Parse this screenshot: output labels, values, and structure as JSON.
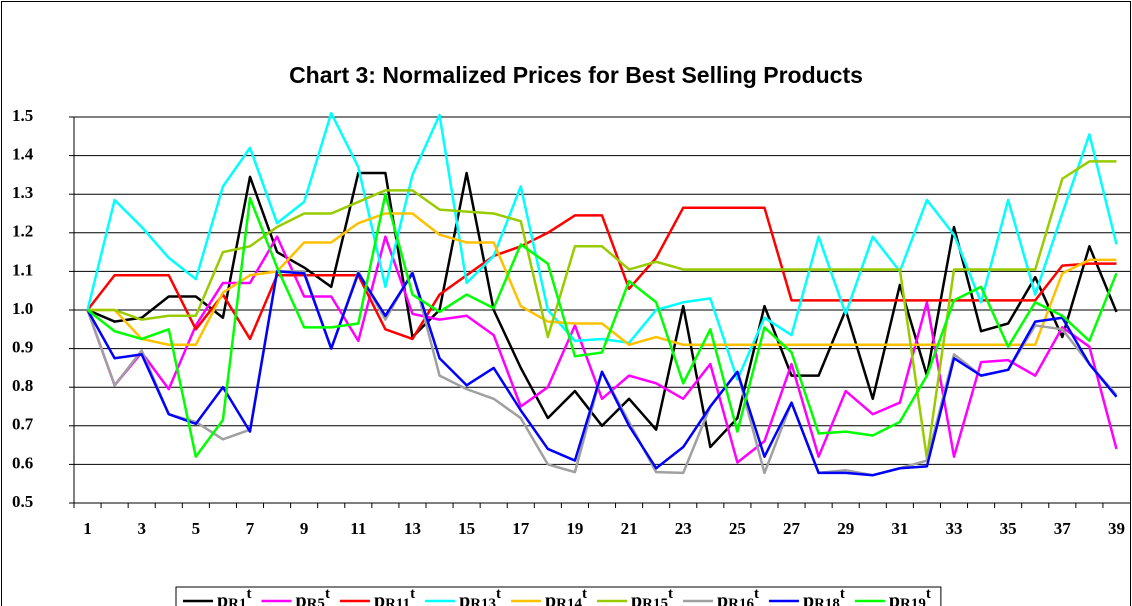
{
  "chart_data": {
    "type": "line",
    "title": "Chart 3: Normalized Prices for Best Selling Products",
    "categories": [
      1,
      null,
      3,
      null,
      5,
      null,
      7,
      null,
      9,
      null,
      11,
      null,
      13,
      null,
      15,
      null,
      17,
      null,
      19,
      null,
      21,
      null,
      23,
      null,
      25,
      null,
      27,
      null,
      29,
      null,
      31,
      null,
      33,
      null,
      35,
      null,
      37,
      null,
      39
    ],
    "ylim": [
      0.5,
      1.5
    ],
    "yticks": [
      0.5,
      0.6,
      0.7,
      0.8,
      0.9,
      {
        "value": 1,
        "label": "1.0"
      },
      1.1,
      1.2,
      1.3,
      1.4,
      1.5
    ],
    "grid": true,
    "legend": "bottom",
    "series": [
      {
        "name": "pR1t",
        "color": "#000000",
        "values": [
          1.0,
          0.97,
          0.98,
          1.035,
          1.035,
          0.98,
          1.345,
          1.15,
          1.11,
          1.06,
          1.355,
          1.355,
          0.93,
          1.0,
          1.355,
          1.0,
          0.85,
          0.72,
          0.79,
          0.7,
          0.77,
          0.69,
          1.01,
          0.645,
          0.72,
          1.01,
          0.83,
          0.83,
          1.0,
          0.77,
          1.065,
          0.83,
          1.215,
          0.945,
          0.965,
          1.085,
          0.93,
          1.165,
          0.995
        ]
      },
      {
        "name": "pR5t",
        "color": "#ff00ff",
        "values": [
          1.0,
          0.805,
          0.89,
          0.795,
          0.96,
          1.07,
          1.07,
          1.19,
          1.035,
          1.035,
          0.92,
          1.19,
          0.99,
          0.975,
          0.985,
          0.935,
          0.75,
          0.8,
          0.96,
          0.77,
          0.83,
          0.81,
          0.77,
          0.86,
          0.605,
          0.66,
          0.86,
          0.62,
          0.79,
          0.73,
          0.76,
          1.02,
          0.62,
          0.865,
          0.87,
          0.83,
          0.955,
          0.905,
          0.64
        ]
      },
      {
        "name": "pR11t",
        "color": "#ff0000",
        "values": [
          1.0,
          1.09,
          1.09,
          1.09,
          0.95,
          1.04,
          0.925,
          1.09,
          1.09,
          1.09,
          1.09,
          0.95,
          0.925,
          1.04,
          1.09,
          1.14,
          1.165,
          1.2,
          1.245,
          1.245,
          1.055,
          1.135,
          1.265,
          1.265,
          1.265,
          1.265,
          1.025,
          1.025,
          1.025,
          1.025,
          1.025,
          1.025,
          1.025,
          1.025,
          1.025,
          1.025,
          1.115,
          1.12,
          1.12
        ]
      },
      {
        "name": "pR13t",
        "color": "#00ffff",
        "values": [
          1.0,
          1.285,
          1.215,
          1.135,
          1.08,
          1.32,
          1.42,
          1.225,
          1.28,
          1.51,
          1.37,
          1.06,
          1.35,
          1.505,
          1.07,
          1.14,
          1.32,
          1.0,
          0.92,
          0.925,
          0.915,
          1.0,
          1.02,
          1.03,
          0.82,
          0.98,
          0.935,
          1.19,
          0.99,
          1.19,
          1.1,
          1.285,
          1.195,
          1.02,
          1.285,
          1.04,
          1.25,
          1.455,
          1.17
        ]
      },
      {
        "name": "pR14t",
        "color": "#ffc000",
        "values": [
          1.0,
          1.0,
          0.925,
          0.91,
          0.91,
          1.045,
          1.09,
          1.1,
          1.175,
          1.175,
          1.225,
          1.25,
          1.25,
          1.195,
          1.175,
          1.175,
          1.01,
          0.97,
          0.965,
          0.965,
          0.91,
          0.93,
          0.91,
          0.91,
          0.91,
          0.91,
          0.91,
          0.91,
          0.91,
          0.91,
          0.91,
          0.91,
          0.91,
          0.91,
          0.91,
          0.91,
          1.095,
          1.13,
          1.13
        ]
      },
      {
        "name": "pR15t",
        "color": "#99cc00",
        "values": [
          1.0,
          1.0,
          0.975,
          0.985,
          0.985,
          1.15,
          1.165,
          1.215,
          1.25,
          1.25,
          1.28,
          1.31,
          1.31,
          1.26,
          1.255,
          1.25,
          1.23,
          0.93,
          1.165,
          1.165,
          1.105,
          1.125,
          1.105,
          1.105,
          1.105,
          1.105,
          1.105,
          1.105,
          1.105,
          1.105,
          1.105,
          0.615,
          1.105,
          1.105,
          1.105,
          1.105,
          1.34,
          1.385,
          1.385
        ]
      },
      {
        "name": "pR16t",
        "color": "#a0a0a0",
        "values": [
          1.0,
          0.805,
          0.895,
          0.73,
          0.71,
          0.665,
          0.69,
          1.1,
          1.1,
          0.9,
          1.1,
          0.975,
          1.1,
          0.83,
          0.795,
          0.77,
          0.72,
          0.6,
          0.58,
          0.84,
          0.71,
          0.58,
          0.578,
          0.75,
          0.84,
          0.578,
          0.76,
          0.578,
          0.585,
          0.572,
          0.59,
          0.61,
          0.885,
          0.83,
          0.845,
          0.96,
          0.95,
          0.86,
          0.78
        ]
      },
      {
        "name": "pR18t",
        "color": "#0000ff",
        "values": [
          1.0,
          0.875,
          0.885,
          0.73,
          0.705,
          0.8,
          0.685,
          1.1,
          1.095,
          0.9,
          1.095,
          0.985,
          1.095,
          0.875,
          0.805,
          0.85,
          0.74,
          0.64,
          0.61,
          0.84,
          0.7,
          0.59,
          0.645,
          0.75,
          0.84,
          0.62,
          0.76,
          0.578,
          0.578,
          0.572,
          0.59,
          0.595,
          0.875,
          0.83,
          0.845,
          0.97,
          0.98,
          0.86,
          0.775
        ]
      },
      {
        "name": "pR19t",
        "color": "#00ff00",
        "values": [
          1.0,
          0.945,
          0.925,
          0.95,
          0.62,
          0.715,
          1.29,
          1.11,
          0.955,
          0.955,
          0.965,
          1.3,
          1.04,
          0.995,
          1.04,
          1.005,
          1.17,
          1.12,
          0.88,
          0.89,
          1.075,
          1.02,
          0.81,
          0.95,
          0.685,
          0.955,
          0.89,
          0.68,
          0.685,
          0.675,
          0.71,
          0.83,
          1.025,
          1.06,
          0.905,
          1.02,
          0.985,
          0.92,
          1.095
        ]
      }
    ]
  }
}
